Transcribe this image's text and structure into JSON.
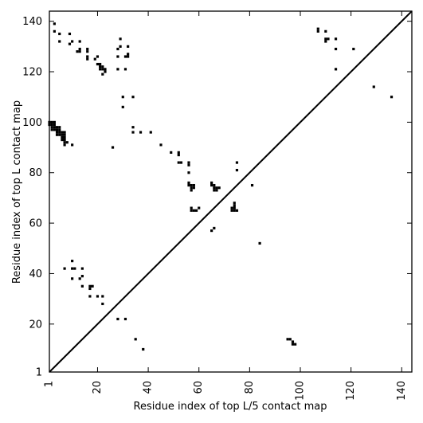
{
  "chart_data": {
    "type": "scatter",
    "title": "",
    "xlabel": "Residue index of top L/5 contact map",
    "ylabel": "Residue index of top L contact map",
    "xlim": [
      1,
      144
    ],
    "ylim": [
      1,
      144
    ],
    "xticks": [
      1,
      20,
      40,
      60,
      80,
      100,
      120,
      140
    ],
    "yticks": [
      1,
      20,
      40,
      60,
      80,
      100,
      120,
      140
    ],
    "diagonal": true,
    "grid": false,
    "marker": "square",
    "color": "#000000",
    "lower_triangle_points": [
      [
        95,
        14
      ],
      [
        96,
        14
      ],
      [
        97,
        13
      ],
      [
        97,
        12
      ],
      [
        98,
        12
      ],
      [
        38,
        10
      ],
      [
        35,
        14
      ],
      [
        28,
        22
      ],
      [
        31,
        22
      ],
      [
        22,
        28
      ],
      [
        17,
        31
      ],
      [
        20,
        31
      ],
      [
        22,
        31
      ],
      [
        14,
        35
      ],
      [
        17,
        34
      ],
      [
        18,
        35
      ],
      [
        17,
        35
      ],
      [
        13,
        38
      ],
      [
        14,
        39
      ],
      [
        10,
        38
      ],
      [
        10,
        42
      ],
      [
        11,
        42
      ],
      [
        7,
        42
      ],
      [
        14,
        42
      ],
      [
        10,
        45
      ],
      [
        84,
        52
      ],
      [
        65,
        57
      ],
      [
        66,
        58
      ],
      [
        73,
        65
      ],
      [
        74,
        65
      ],
      [
        75,
        65
      ],
      [
        73,
        66
      ],
      [
        74,
        66
      ],
      [
        74,
        67
      ],
      [
        74,
        68
      ],
      [
        57,
        65
      ],
      [
        58,
        65
      ],
      [
        59,
        65
      ],
      [
        60,
        66
      ],
      [
        57,
        66
      ],
      [
        56,
        75
      ],
      [
        57,
        75
      ],
      [
        58,
        75
      ],
      [
        56,
        76
      ],
      [
        57,
        74
      ],
      [
        57,
        73
      ],
      [
        58,
        74
      ],
      [
        65,
        75
      ],
      [
        66,
        75
      ],
      [
        65,
        76
      ],
      [
        67,
        74
      ],
      [
        68,
        74
      ],
      [
        66,
        73
      ],
      [
        67,
        73
      ],
      [
        66,
        74
      ],
      [
        56,
        80
      ],
      [
        56,
        83
      ],
      [
        56,
        84
      ],
      [
        52,
        84
      ],
      [
        53,
        84
      ],
      [
        52,
        87
      ],
      [
        52,
        88
      ],
      [
        49,
        88
      ],
      [
        45,
        91
      ],
      [
        75,
        81
      ],
      [
        75,
        84
      ],
      [
        81,
        75
      ]
    ],
    "upper_triangle_points": [
      [
        2,
        97
      ],
      [
        3,
        97
      ],
      [
        2,
        98
      ],
      [
        3,
        98
      ],
      [
        2,
        99
      ],
      [
        3,
        99
      ],
      [
        4,
        98
      ],
      [
        4,
        97
      ],
      [
        2,
        100
      ],
      [
        3,
        100
      ],
      [
        1,
        100
      ],
      [
        1,
        99
      ],
      [
        4,
        96
      ],
      [
        5,
        96
      ],
      [
        5,
        95
      ],
      [
        4,
        95
      ],
      [
        6,
        95
      ],
      [
        7,
        95
      ],
      [
        6,
        94
      ],
      [
        7,
        94
      ],
      [
        6,
        93
      ],
      [
        7,
        93
      ],
      [
        7,
        92
      ],
      [
        7,
        91
      ],
      [
        5,
        97
      ],
      [
        5,
        98
      ],
      [
        6,
        96
      ],
      [
        7,
        96
      ],
      [
        8,
        92
      ],
      [
        10,
        91
      ],
      [
        26,
        90
      ],
      [
        34,
        96
      ],
      [
        34,
        98
      ],
      [
        37,
        96
      ],
      [
        41,
        96
      ],
      [
        30,
        106
      ],
      [
        30,
        110
      ],
      [
        34,
        110
      ],
      [
        28,
        121
      ],
      [
        31,
        121
      ],
      [
        22,
        119
      ],
      [
        21,
        121
      ],
      [
        22,
        121
      ],
      [
        21,
        122
      ],
      [
        22,
        122
      ],
      [
        23,
        121
      ],
      [
        20,
        123
      ],
      [
        21,
        123
      ],
      [
        23,
        120
      ],
      [
        19,
        125
      ],
      [
        20,
        126
      ],
      [
        16,
        125
      ],
      [
        16,
        126
      ],
      [
        16,
        128
      ],
      [
        16,
        129
      ],
      [
        12,
        128
      ],
      [
        13,
        128
      ],
      [
        13,
        129
      ],
      [
        13,
        132
      ],
      [
        9,
        131
      ],
      [
        10,
        132
      ],
      [
        9,
        135
      ],
      [
        5,
        132
      ],
      [
        5,
        135
      ],
      [
        3,
        136
      ],
      [
        3,
        139
      ],
      [
        28,
        126
      ],
      [
        28,
        129
      ],
      [
        29,
        130
      ],
      [
        29,
        133
      ],
      [
        31,
        126
      ],
      [
        32,
        126
      ],
      [
        32,
        127
      ],
      [
        32,
        130
      ],
      [
        107,
        136
      ],
      [
        107,
        137
      ],
      [
        110,
        136
      ],
      [
        110,
        132
      ],
      [
        110,
        133
      ],
      [
        111,
        133
      ],
      [
        114,
        133
      ],
      [
        114,
        129
      ],
      [
        114,
        121
      ],
      [
        121,
        129
      ],
      [
        129,
        114
      ],
      [
        136,
        110
      ]
    ]
  }
}
